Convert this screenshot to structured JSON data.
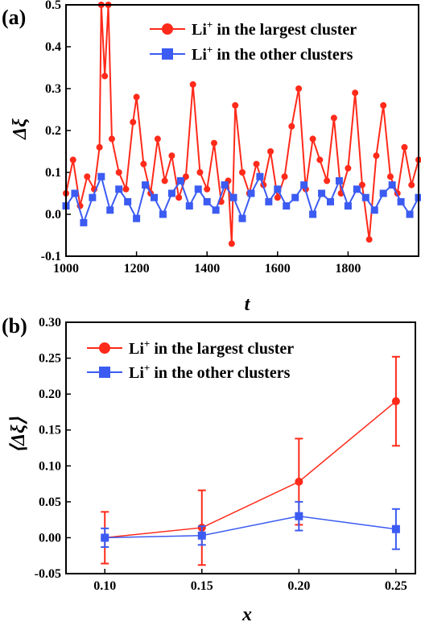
{
  "colors": {
    "red": "#ff2a1a",
    "blue": "#3b5bf2"
  },
  "chart_data": [
    {
      "type": "line",
      "panel_label": "(a)",
      "xlabel": "t",
      "ylabel": "Δξ",
      "xlim": [
        1000,
        2000
      ],
      "ylim": [
        -0.1,
        0.5
      ],
      "xticks": [
        "1000",
        "1200",
        "1400",
        "1600",
        "1800"
      ],
      "yticks": [
        "-0.1",
        "0.0",
        "0.1",
        "0.2",
        "0.3",
        "0.4",
        "0.5"
      ],
      "legend_position": "top-right",
      "series": [
        {
          "name_base": "Li",
          "name_sup": "+",
          "name_rest": " in the largest cluster",
          "color": "#ff2a1a",
          "marker": "circle",
          "x": [
            1000,
            1020,
            1040,
            1060,
            1080,
            1095,
            1100,
            1110,
            1120,
            1130,
            1150,
            1170,
            1190,
            1200,
            1220,
            1240,
            1260,
            1280,
            1300,
            1320,
            1340,
            1360,
            1380,
            1400,
            1420,
            1440,
            1460,
            1470,
            1480,
            1500,
            1520,
            1540,
            1560,
            1580,
            1600,
            1620,
            1640,
            1660,
            1680,
            1700,
            1720,
            1740,
            1760,
            1780,
            1800,
            1820,
            1840,
            1860,
            1880,
            1900,
            1920,
            1940,
            1960,
            1980,
            2000
          ],
          "y": [
            0.05,
            0.13,
            0.02,
            0.09,
            0.06,
            0.16,
            0.5,
            0.33,
            0.5,
            0.18,
            0.1,
            0.06,
            0.22,
            0.28,
            0.12,
            0.05,
            0.18,
            0.08,
            0.14,
            0.04,
            0.09,
            0.31,
            0.1,
            0.06,
            0.17,
            0.03,
            0.08,
            -0.07,
            0.26,
            0.1,
            0.05,
            0.12,
            0.07,
            0.15,
            0.04,
            0.09,
            0.21,
            0.3,
            0.06,
            0.18,
            0.13,
            0.08,
            0.23,
            0.05,
            0.11,
            0.29,
            0.07,
            -0.06,
            0.14,
            0.26,
            0.09,
            0.05,
            0.16,
            0.07,
            0.13
          ]
        },
        {
          "name_base": "Li",
          "name_sup": "+",
          "name_rest": " in the other clusters",
          "color": "#3b5bf2",
          "marker": "square",
          "x": [
            1000,
            1025,
            1050,
            1075,
            1100,
            1125,
            1150,
            1175,
            1200,
            1225,
            1250,
            1275,
            1300,
            1325,
            1350,
            1375,
            1400,
            1425,
            1450,
            1475,
            1500,
            1525,
            1550,
            1575,
            1600,
            1625,
            1650,
            1675,
            1700,
            1725,
            1750,
            1775,
            1800,
            1825,
            1850,
            1875,
            1900,
            1925,
            1950,
            1975,
            2000
          ],
          "y": [
            0.02,
            0.05,
            -0.02,
            0.04,
            0.09,
            0.01,
            0.06,
            0.03,
            -0.01,
            0.07,
            0.04,
            0.0,
            0.05,
            0.08,
            0.02,
            0.06,
            0.03,
            0.01,
            0.07,
            0.04,
            -0.01,
            0.05,
            0.09,
            0.03,
            0.06,
            0.02,
            0.04,
            0.07,
            0.0,
            0.05,
            0.03,
            0.08,
            0.02,
            0.06,
            0.04,
            0.01,
            0.05,
            0.07,
            0.03,
            0.0,
            0.04
          ]
        }
      ]
    },
    {
      "type": "line",
      "panel_label": "(b)",
      "xlabel": "x",
      "ylabel": "⟨Δξ⟩",
      "xlim": [
        0.08,
        0.26
      ],
      "ylim": [
        -0.05,
        0.3
      ],
      "xticks": [
        "0.10",
        "0.15",
        "0.20",
        "0.25"
      ],
      "yticks": [
        "-0.05",
        "0.00",
        "0.05",
        "0.10",
        "0.15",
        "0.20",
        "0.25",
        "0.30"
      ],
      "legend_position": "top-left",
      "series": [
        {
          "name_base": "Li",
          "name_sup": "+",
          "name_rest": " in the largest cluster",
          "color": "#ff2a1a",
          "marker": "circle",
          "x": [
            0.1,
            0.15,
            0.2,
            0.25
          ],
          "y": [
            0.0,
            0.014,
            0.078,
            0.19
          ],
          "yerr": [
            0.036,
            0.052,
            0.06,
            0.062
          ]
        },
        {
          "name_base": "Li",
          "name_sup": "+",
          "name_rest": " in the other clusters",
          "color": "#3b5bf2",
          "marker": "square",
          "x": [
            0.1,
            0.15,
            0.2,
            0.25
          ],
          "y": [
            0.0,
            0.003,
            0.03,
            0.012
          ],
          "yerr": [
            0.013,
            0.013,
            0.02,
            0.028
          ]
        }
      ]
    }
  ]
}
